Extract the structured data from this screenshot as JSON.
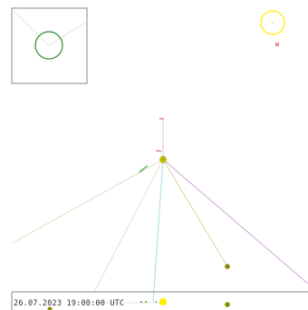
{
  "timestamp": "26.07.2023 19:00:00 UTC",
  "colors": {
    "background": "#ffffff",
    "inset_frame": "#888888",
    "inset_circle": "#2e8b2e",
    "sun": "#ffee00",
    "sun_marker": "#e24b4b",
    "center_body": "#d4d400",
    "olive_body": "#8a8a00",
    "orbit_green": "#44aa44",
    "ray_beige": "#e3dcc4",
    "ray_olive": "#d8d8a0",
    "ray_cyan": "#a8dde0",
    "ray_violet": "#cfa8d8",
    "ray_red": "#cc5555",
    "timeline": "#888888"
  },
  "icons": {
    "sun": "sun-icon",
    "sun_marker": "cross-marker-icon",
    "center_body": "body-marker-icon"
  }
}
